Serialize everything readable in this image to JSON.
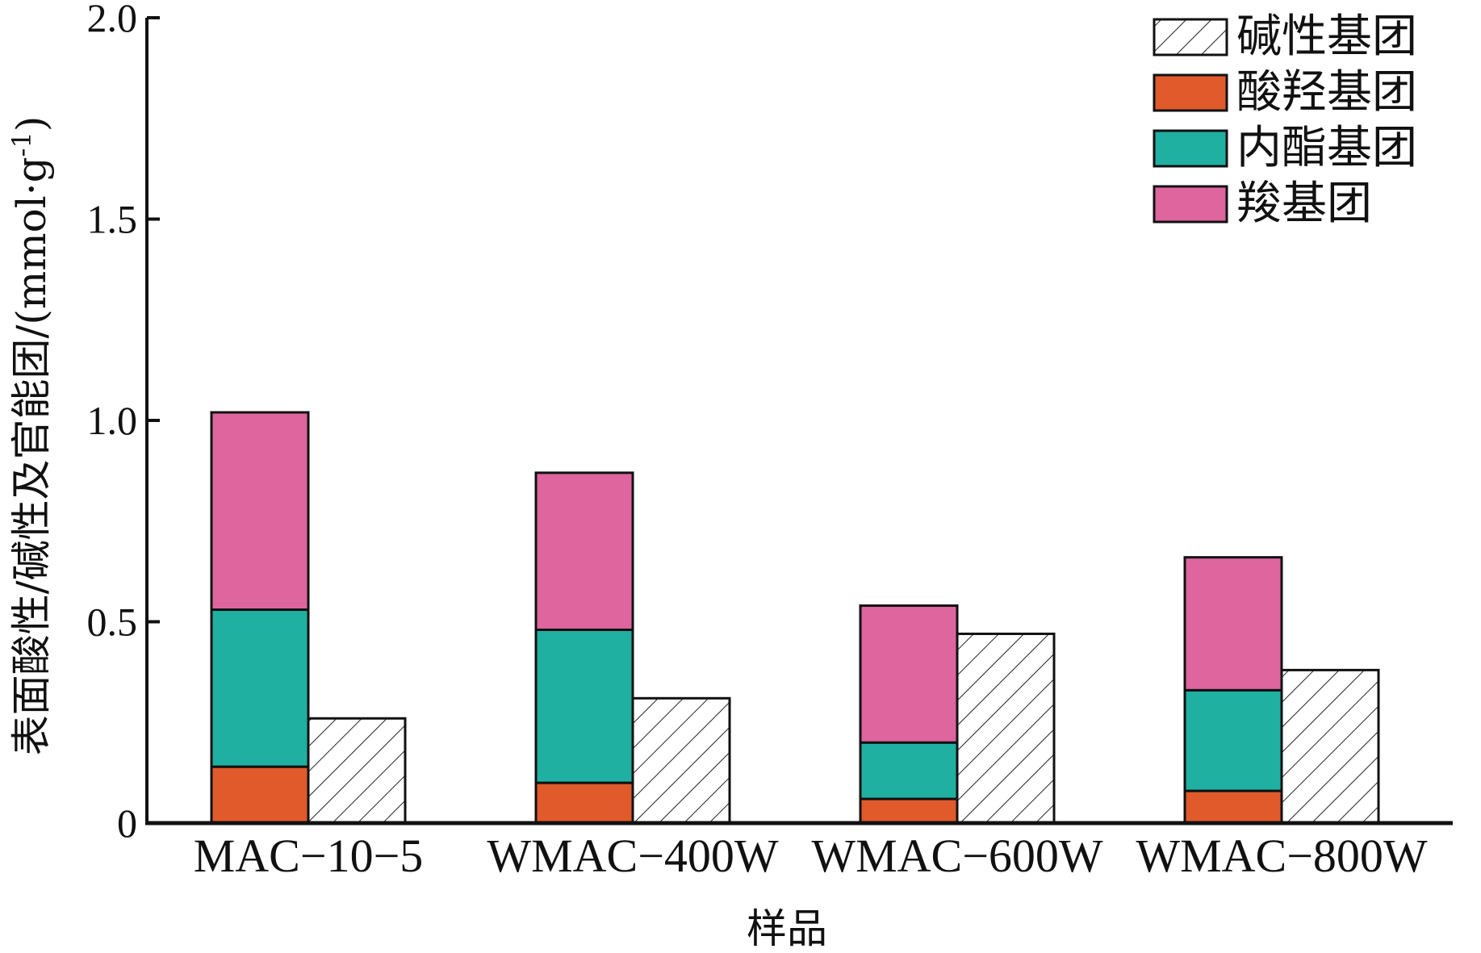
{
  "chart_data": {
    "type": "bar",
    "stacked_with_side_bar": true,
    "categories": [
      "MAC−10−5",
      "WMAC−400W",
      "WMAC−600W",
      "WMAC−800W"
    ],
    "series": [
      {
        "name": "酸羟基团",
        "group": "acidic",
        "color": "#e05a2b",
        "values": [
          0.14,
          0.1,
          0.06,
          0.08
        ]
      },
      {
        "name": "内酯基团",
        "group": "acidic",
        "color": "#20b0a2",
        "values": [
          0.39,
          0.38,
          0.14,
          0.25
        ]
      },
      {
        "name": "羧基团",
        "group": "acidic",
        "color": "#de659e",
        "values": [
          0.49,
          0.39,
          0.34,
          0.33
        ]
      },
      {
        "name": "碱性基团",
        "group": "basic",
        "color": "hatch",
        "values": [
          0.26,
          0.31,
          0.47,
          0.38
        ]
      }
    ],
    "legend_order": [
      "碱性基团",
      "酸羟基团",
      "内酯基团",
      "羧基团"
    ],
    "legend_position": "top-right",
    "xlabel": "样品",
    "ylabel": "表面酸性/碱性及官能团/(mmol·g⁻¹)",
    "ylabel_main": "表面酸性/碱性及官能团/(mmol·g",
    "ylabel_sup": "-1",
    "ylabel_end": ")",
    "ylim": [
      0,
      2.0
    ],
    "yticks": [
      0,
      0.5,
      1.0,
      1.5,
      2.0
    ],
    "ytick_labels": [
      "0",
      "0.5",
      "1.0",
      "1.5",
      "2.0"
    ],
    "grid": false
  }
}
